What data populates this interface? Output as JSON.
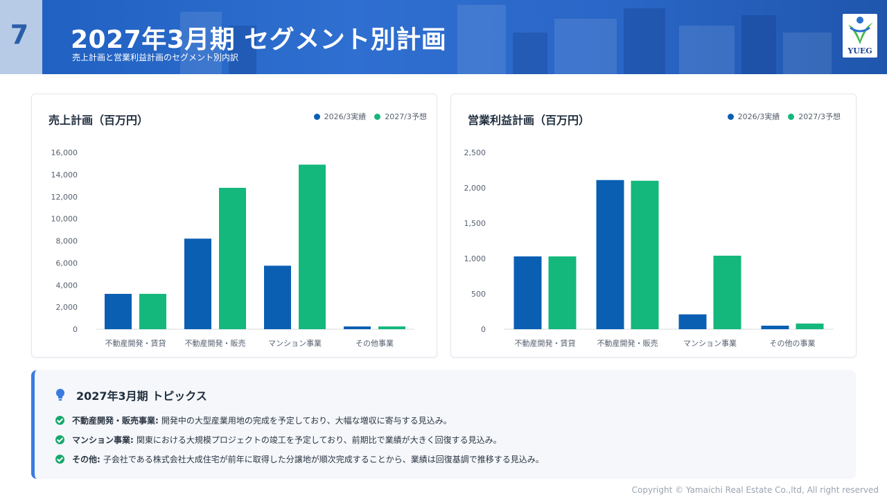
{
  "header": {
    "page_number": "7",
    "title": "2027年3月期 セグメント別計画",
    "subtitle": "売上計画と営業利益計画のセグメント別内訳",
    "logo_text": "YUEG"
  },
  "colors": {
    "series_2026": "#0b5fb3",
    "series_2027": "#14b87c",
    "accent": "#3a7be0"
  },
  "chart_data": [
    {
      "type": "bar",
      "title": "売上計画（百万円）",
      "categories": [
        "不動産開発・賃貸",
        "不動産開発・販売",
        "マンション事業",
        "その他事業"
      ],
      "series": [
        {
          "name": "2026/3実績",
          "values": [
            3200,
            8200,
            5750,
            250
          ]
        },
        {
          "name": "2027/3予想",
          "values": [
            3200,
            12800,
            14900,
            250
          ]
        }
      ],
      "ylim": [
        0,
        16000
      ],
      "yticks": [
        "0",
        "2,000",
        "4,000",
        "6,000",
        "8,000",
        "10,000",
        "12,000",
        "14,000",
        "16,000"
      ],
      "ytick_values": [
        0,
        2000,
        4000,
        6000,
        8000,
        10000,
        12000,
        14000,
        16000
      ],
      "legend": "top-right",
      "grid": false
    },
    {
      "type": "bar",
      "title": "営業利益計画（百万円）",
      "categories": [
        "不動産開発・賃貸",
        "不動産開発・販売",
        "マンション事業",
        "その他の事業"
      ],
      "series": [
        {
          "name": "2026/3実績",
          "values": [
            1030,
            2110,
            210,
            50
          ]
        },
        {
          "name": "2027/3予想",
          "values": [
            1030,
            2100,
            1040,
            80
          ]
        }
      ],
      "ylim": [
        0,
        2500
      ],
      "yticks": [
        "0",
        "500",
        "1,000",
        "1,500",
        "2,000",
        "2,500"
      ],
      "ytick_values": [
        0,
        500,
        1000,
        1500,
        2000,
        2500
      ],
      "legend": "top-right",
      "grid": false
    }
  ],
  "topics": {
    "title": "2027年3月期 トピックス",
    "items": [
      {
        "label": "不動産開発・販売事業:",
        "text": "開発中の大型産業用地の完成を予定しており、大幅な増収に寄与する見込み。"
      },
      {
        "label": "マンション事業:",
        "text": "関東における大規模プロジェクトの竣工を予定しており、前期比で業績が大きく回復する見込み。"
      },
      {
        "label": "その他:",
        "text": "子会社である株式会社大成住宅が前年に取得した分譲地が順次完成することから、業績は回復基調で推移する見込み。"
      }
    ]
  },
  "footer": "Copyright © Yamaichi Real Estate Co.,ltd, All right reserved"
}
